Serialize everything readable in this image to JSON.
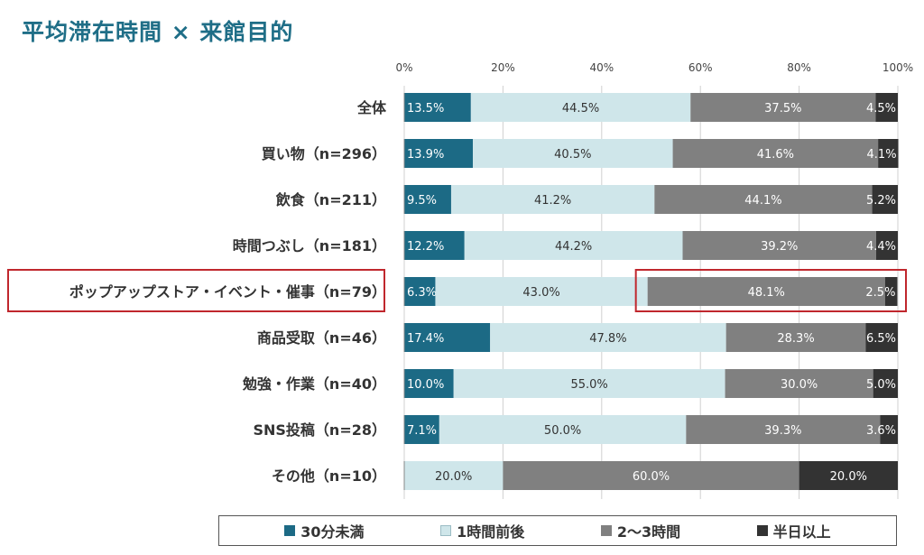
{
  "title": "平均滞在時間 × 来館目的",
  "chart_data": {
    "type": "bar",
    "orientation": "horizontal",
    "stacked": true,
    "xlim": [
      0,
      100
    ],
    "xticks": [
      "0%",
      "20%",
      "40%",
      "60%",
      "80%",
      "100%"
    ],
    "categories": [
      "全体",
      "買い物（n=296）",
      "飲食（n=211）",
      "時間つぶし（n=181）",
      "ポップアップストア・イベント・催事（n=79）",
      "商品受取（n=46）",
      "勉強・作業（n=40）",
      "SNS投稿（n=28）",
      "その他（n=10）"
    ],
    "series": [
      {
        "name": "30分未満",
        "color": "#1c6a85",
        "label_color": "#ffffff",
        "values": [
          13.5,
          13.9,
          9.5,
          12.2,
          6.3,
          17.4,
          10.0,
          7.1,
          0
        ]
      },
      {
        "name": "1時間前後",
        "color": "#cfe6ea",
        "label_color": "#333333",
        "values": [
          44.5,
          40.5,
          41.2,
          44.2,
          43.0,
          47.8,
          55.0,
          50.0,
          20.0
        ]
      },
      {
        "name": "2〜3時間",
        "color": "#808080",
        "label_color": "#ffffff",
        "values": [
          37.5,
          41.6,
          44.1,
          39.2,
          48.1,
          28.3,
          30.0,
          39.3,
          60.0
        ]
      },
      {
        "name": "半日以上",
        "color": "#333333",
        "label_color": "#ffffff",
        "values": [
          4.5,
          4.1,
          5.2,
          4.4,
          2.5,
          6.5,
          5.0,
          3.6,
          20.0
        ]
      }
    ],
    "legend_position": "bottom",
    "highlight": {
      "category_index": 4,
      "series_indices": [
        2,
        3
      ],
      "color": "#c0272d"
    }
  }
}
